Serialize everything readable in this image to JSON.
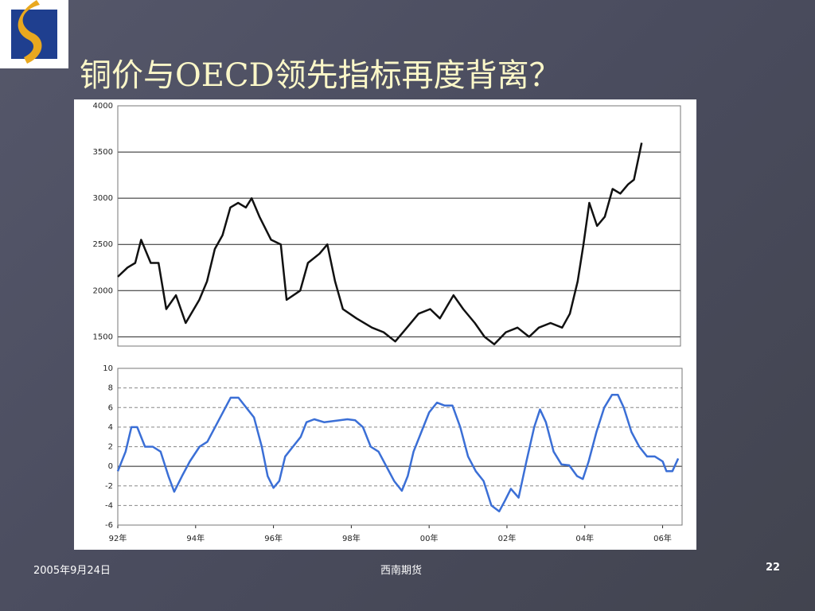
{
  "slide": {
    "title": "铜价与OECD领先指标再度背离？"
  },
  "footer": {
    "date": "2005年9月24日",
    "source": "西南期货",
    "page": "22"
  },
  "chart_data": [
    {
      "type": "line",
      "color": "#111111",
      "grid": "solid",
      "xlim": [
        1992,
        2006.5
      ],
      "ylim": [
        1400,
        4000
      ],
      "yticks": [
        1500,
        2000,
        2500,
        3000,
        3500,
        4000
      ],
      "x": [
        1992.0,
        1992.25,
        1992.45,
        1992.6,
        1992.85,
        1993.05,
        1993.25,
        1993.5,
        1993.75,
        1994.1,
        1994.3,
        1994.5,
        1994.7,
        1994.9,
        1995.1,
        1995.3,
        1995.45,
        1995.65,
        1995.95,
        1996.2,
        1996.35,
        1996.7,
        1996.9,
        1997.2,
        1997.4,
        1997.6,
        1997.8,
        1998.15,
        1998.55,
        1998.85,
        1999.15,
        1999.45,
        1999.75,
        2000.05,
        2000.3,
        2000.65,
        2000.9,
        2001.2,
        2001.45,
        2001.7,
        2002.0,
        2002.3,
        2002.6,
        2002.85,
        2003.15,
        2003.45,
        2003.65,
        2003.85,
        2004.0,
        2004.15,
        2004.35,
        2004.55,
        2004.75,
        2004.95,
        2005.15,
        2005.3,
        2005.45,
        2005.5
      ],
      "values": [
        2150,
        2250,
        2300,
        2550,
        2300,
        2300,
        1800,
        1950,
        1650,
        1900,
        2100,
        2450,
        2600,
        2900,
        2950,
        2900,
        3000,
        2800,
        2550,
        2500,
        1900,
        2000,
        2300,
        2400,
        2500,
        2100,
        1800,
        1700,
        1600,
        1550,
        1450,
        1600,
        1750,
        1800,
        1700,
        1950,
        1800,
        1650,
        1500,
        1420,
        1550,
        1600,
        1500,
        1600,
        1650,
        1600,
        1750,
        2100,
        2500,
        2950,
        2700,
        2800,
        3100,
        3050,
        3150,
        3200,
        3500,
        3600
      ]
    },
    {
      "type": "line",
      "color": "#3b6fd6",
      "grid": "dashed",
      "xlim": [
        1992,
        2006.5
      ],
      "ylim": [
        -6,
        10
      ],
      "yticks": [
        -6,
        -4,
        -2,
        0,
        2,
        4,
        6,
        8,
        10
      ],
      "xticks": [
        {
          "value": 1992,
          "label": "92年"
        },
        {
          "value": 1994,
          "label": "94年"
        },
        {
          "value": 1996,
          "label": "96年"
        },
        {
          "value": 1998,
          "label": "98年"
        },
        {
          "value": 2000,
          "label": "00年"
        },
        {
          "value": 2002,
          "label": "02年"
        },
        {
          "value": 2004,
          "label": "04年"
        },
        {
          "value": 2006,
          "label": "06年"
        }
      ],
      "x": [
        1992.0,
        1992.2,
        1992.35,
        1992.5,
        1992.7,
        1992.9,
        1993.1,
        1993.3,
        1993.45,
        1993.65,
        1993.85,
        1994.1,
        1994.3,
        1994.5,
        1994.7,
        1994.9,
        1995.1,
        1995.3,
        1995.5,
        1995.7,
        1995.85,
        1996.0,
        1996.15,
        1996.3,
        1996.5,
        1996.7,
        1996.85,
        1997.05,
        1997.3,
        1997.5,
        1997.7,
        1997.9,
        1998.1,
        1998.3,
        1998.5,
        1998.7,
        1998.9,
        1999.1,
        1999.3,
        1999.45,
        1999.6,
        1999.8,
        2000.0,
        2000.2,
        2000.4,
        2000.6,
        2000.8,
        2001.0,
        2001.2,
        2001.4,
        2001.6,
        2001.8,
        2001.95,
        2002.1,
        2002.3,
        2002.5,
        2002.7,
        2002.85,
        2003.0,
        2003.2,
        2003.4,
        2003.6,
        2003.8,
        2003.95,
        2004.1,
        2004.3,
        2004.5,
        2004.7,
        2004.85,
        2005.0,
        2005.2,
        2005.4,
        2005.6,
        2005.8,
        2006.0,
        2006.1,
        2006.25,
        2006.4
      ],
      "values": [
        -0.5,
        1.5,
        4.0,
        4.0,
        2.0,
        2.0,
        1.5,
        -1.0,
        -2.6,
        -1.0,
        0.5,
        2.0,
        2.5,
        4.0,
        5.5,
        7.0,
        7.0,
        6.0,
        5.0,
        2.0,
        -1.0,
        -2.2,
        -1.5,
        1.0,
        2.0,
        3.0,
        4.5,
        4.8,
        4.5,
        4.6,
        4.7,
        4.8,
        4.7,
        4.0,
        2.0,
        1.5,
        0.0,
        -1.5,
        -2.5,
        -1.0,
        1.5,
        3.5,
        5.5,
        6.5,
        6.2,
        6.2,
        4.0,
        1.0,
        -0.5,
        -1.5,
        -4.0,
        -4.6,
        -3.5,
        -2.3,
        -3.2,
        0.5,
        4.0,
        5.8,
        4.5,
        1.5,
        0.2,
        0.1,
        -1.0,
        -1.3,
        0.5,
        3.5,
        6.0,
        7.3,
        7.3,
        6.0,
        3.5,
        2.0,
        1.0,
        1.0,
        0.5,
        -0.5,
        -0.5,
        0.8
      ]
    }
  ]
}
